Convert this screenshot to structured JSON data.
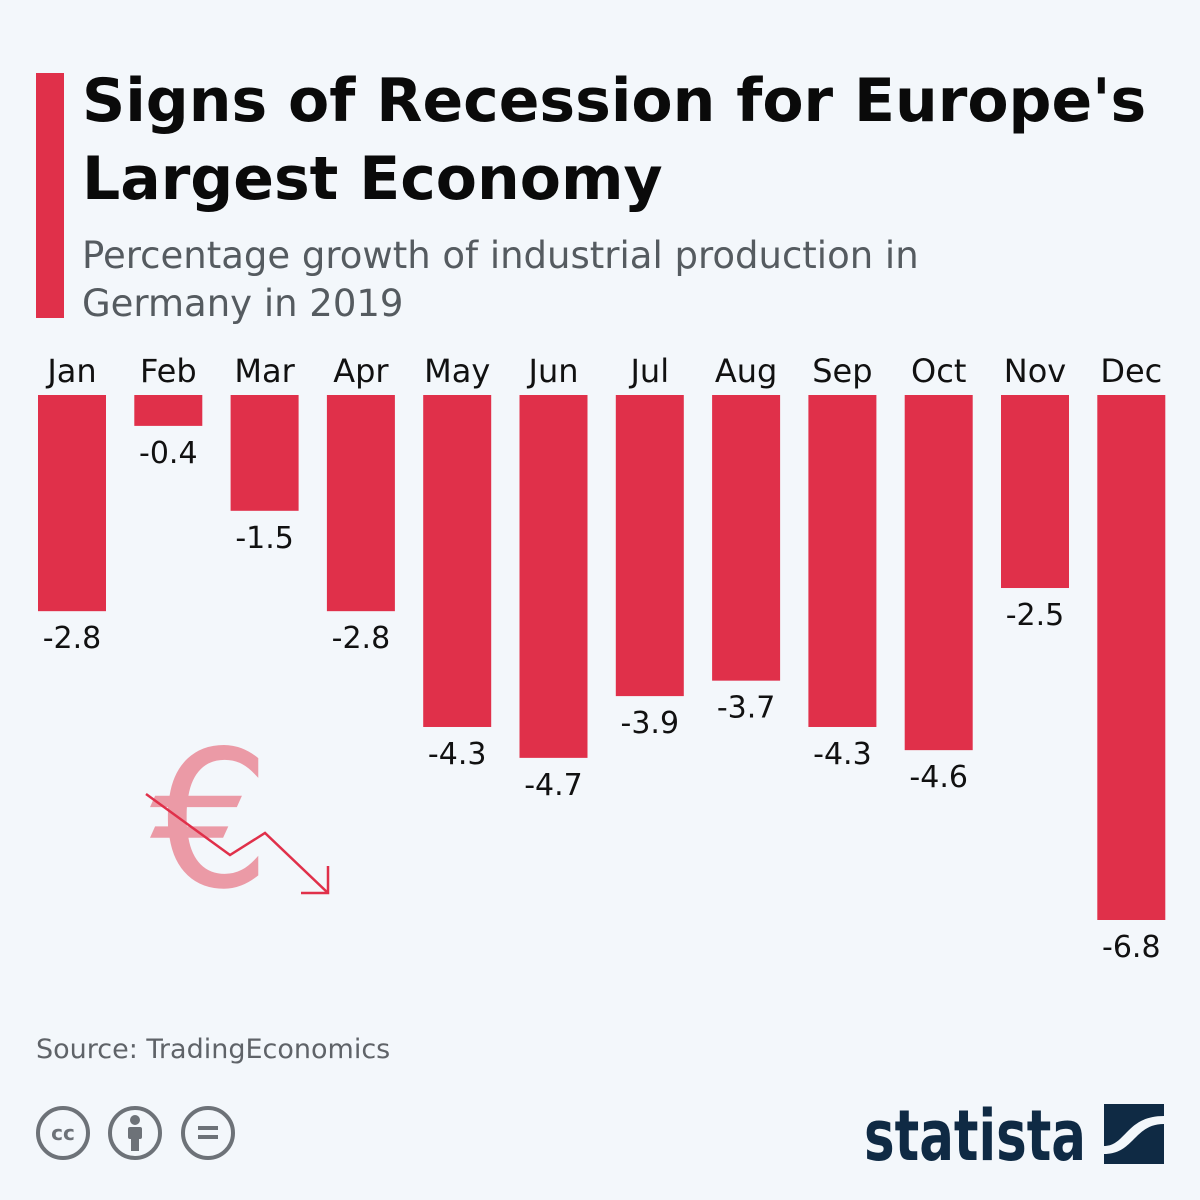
{
  "title": "Signs of Recession for Europe's Largest Economy",
  "subtitle": "Percentage growth of industrial production in Germany in 2019",
  "source": "Source: TradingEconomics",
  "brand": "statista",
  "colors": {
    "bar": "#e0304a",
    "background": "#f3f7fb",
    "brand": "#0f2a44",
    "euro_icon": "#eb9aa6"
  },
  "icons": [
    "euro-decline-icon",
    "cc-icon",
    "attribution-icon",
    "no-derivatives-icon",
    "statista-logo-icon"
  ],
  "chart_data": {
    "type": "bar",
    "title": "Signs of Recession for Europe's Largest Economy",
    "subtitle": "Percentage growth of industrial production in Germany in 2019",
    "categories": [
      "Jan",
      "Feb",
      "Mar",
      "Apr",
      "May",
      "Jun",
      "Jul",
      "Aug",
      "Sep",
      "Oct",
      "Nov",
      "Dec"
    ],
    "values": [
      -2.8,
      -0.4,
      -1.5,
      -2.8,
      -4.3,
      -4.7,
      -3.9,
      -3.7,
      -4.3,
      -4.6,
      -2.5,
      -6.8
    ],
    "value_labels": [
      "-2.8",
      "-0.4",
      "-1.5",
      "-2.8",
      "-4.3",
      "-4.7",
      "-3.9",
      "-3.7",
      "-4.3",
      "-4.6",
      "-2.5",
      "-6.8"
    ],
    "xlabel": "",
    "ylabel": "",
    "ylim": [
      -6.8,
      0
    ],
    "grid": false,
    "legend": "none"
  }
}
